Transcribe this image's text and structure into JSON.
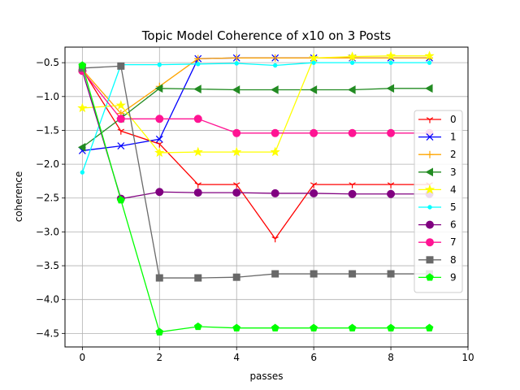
{
  "chart_data": {
    "type": "line",
    "title": "Topic Model Coherence of x10 on 3 Posts",
    "xlabel": "passes",
    "ylabel": "coherence",
    "xlim": [
      -0.45,
      10
    ],
    "ylim": [
      -4.7,
      -0.27
    ],
    "xticks": [
      0,
      2,
      4,
      6,
      8,
      10
    ],
    "xtick_labels": [
      "0",
      "2",
      "4",
      "6",
      "8",
      "10"
    ],
    "yticks": [
      -4.5,
      -4.0,
      -3.5,
      -3.0,
      -2.5,
      -2.0,
      -1.5,
      -1.0,
      -0.5
    ],
    "ytick_labels": [
      "−4.5",
      "−4.0",
      "−3.5",
      "−3.0",
      "−2.5",
      "−2.0",
      "−1.5",
      "−1.0",
      "−0.5"
    ],
    "grid": true,
    "legend_position": "right",
    "x": [
      0,
      1,
      2,
      3,
      4,
      5,
      6,
      7,
      8,
      9
    ],
    "series": [
      {
        "name": "0",
        "color": "#ff0000",
        "marker": "tri_down",
        "values": [
          -0.6,
          -1.51,
          -1.7,
          -2.3,
          -2.3,
          -3.1,
          -2.3,
          -2.3,
          -2.3,
          -2.3
        ]
      },
      {
        "name": "1",
        "color": "#0000ff",
        "marker": "x",
        "values": [
          -1.8,
          -1.73,
          -1.63,
          -0.44,
          -0.43,
          -0.43,
          -0.43,
          -0.43,
          -0.43,
          -0.43
        ]
      },
      {
        "name": "2",
        "color": "#ffa500",
        "marker": "plus",
        "values": [
          -0.6,
          -1.25,
          -0.85,
          -0.44,
          -0.43,
          -0.43,
          -0.43,
          -0.43,
          -0.43,
          -0.43
        ]
      },
      {
        "name": "3",
        "color": "#228b22",
        "marker": "tri_left",
        "values": [
          -1.75,
          -1.32,
          -0.88,
          -0.89,
          -0.9,
          -0.9,
          -0.9,
          -0.9,
          -0.88,
          -0.88
        ]
      },
      {
        "name": "4",
        "color": "#ffff00",
        "marker": "star",
        "values": [
          -1.17,
          -1.13,
          -1.83,
          -1.82,
          -1.82,
          -1.82,
          -0.43,
          -0.41,
          -0.4,
          -0.4
        ]
      },
      {
        "name": "5",
        "color": "#00ffff",
        "marker": "point",
        "values": [
          -2.12,
          -0.53,
          -0.53,
          -0.52,
          -0.51,
          -0.54,
          -0.5,
          -0.5,
          -0.5,
          -0.5
        ]
      },
      {
        "name": "6",
        "color": "#800080",
        "marker": "circle",
        "values": [
          -0.62,
          -2.51,
          -2.41,
          -2.42,
          -2.42,
          -2.43,
          -2.43,
          -2.44,
          -2.44,
          -2.44
        ]
      },
      {
        "name": "7",
        "color": "#ff1493",
        "marker": "circle",
        "values": [
          -0.62,
          -1.33,
          -1.33,
          -1.33,
          -1.54,
          -1.54,
          -1.54,
          -1.54,
          -1.54,
          -1.54
        ]
      },
      {
        "name": "8",
        "color": "#696969",
        "marker": "square",
        "values": [
          -0.58,
          -0.55,
          -3.68,
          -3.68,
          -3.67,
          -3.62,
          -3.62,
          -3.62,
          -3.62,
          -3.62
        ]
      },
      {
        "name": "9",
        "color": "#00ff00",
        "marker": "pentagon",
        "values": [
          -0.54,
          -2.53,
          -4.48,
          -4.4,
          -4.42,
          -4.42,
          -4.42,
          -4.42,
          -4.42,
          -4.42
        ]
      }
    ]
  }
}
